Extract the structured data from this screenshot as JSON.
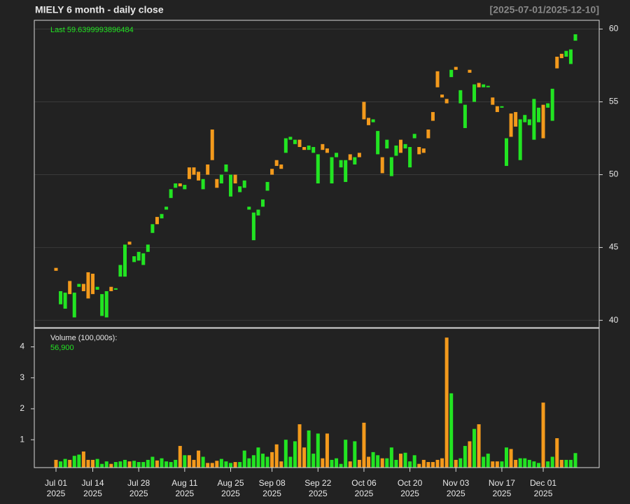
{
  "chart_data": {
    "type": "candlestick",
    "title": "MIELY  6 month - daily close",
    "range_label": "[2025-07-01/2025-12-10]",
    "last_label": "Last",
    "volume_title": "Volume (100,000s):",
    "x": [
      "2025-07-01",
      "2025-07-02",
      "2025-07-03",
      "2025-07-07",
      "2025-07-08",
      "2025-07-09",
      "2025-07-10",
      "2025-07-11",
      "2025-07-14",
      "2025-07-15",
      "2025-07-16",
      "2025-07-17",
      "2025-07-18",
      "2025-07-21",
      "2025-07-22",
      "2025-07-23",
      "2025-07-24",
      "2025-07-25",
      "2025-07-28",
      "2025-07-29",
      "2025-07-30",
      "2025-07-31",
      "2025-08-01",
      "2025-08-04",
      "2025-08-05",
      "2025-08-06",
      "2025-08-07",
      "2025-08-08",
      "2025-08-11",
      "2025-08-12",
      "2025-08-13",
      "2025-08-14",
      "2025-08-15",
      "2025-08-18",
      "2025-08-19",
      "2025-08-20",
      "2025-08-21",
      "2025-08-22",
      "2025-08-25",
      "2025-08-26",
      "2025-08-27",
      "2025-08-28",
      "2025-08-29",
      "2025-09-02",
      "2025-09-03",
      "2025-09-04",
      "2025-09-05",
      "2025-09-08",
      "2025-09-09",
      "2025-09-10",
      "2025-09-11",
      "2025-09-12",
      "2025-09-15",
      "2025-09-16",
      "2025-09-17",
      "2025-09-18",
      "2025-09-19",
      "2025-09-22",
      "2025-09-23",
      "2025-09-24",
      "2025-09-25",
      "2025-09-26",
      "2025-09-29",
      "2025-09-30",
      "2025-10-01",
      "2025-10-02",
      "2025-10-03",
      "2025-10-06",
      "2025-10-07",
      "2025-10-08",
      "2025-10-09",
      "2025-10-10",
      "2025-10-13",
      "2025-10-14",
      "2025-10-15",
      "2025-10-16",
      "2025-10-17",
      "2025-10-20",
      "2025-10-21",
      "2025-10-22",
      "2025-10-23",
      "2025-10-24",
      "2025-10-27",
      "2025-10-28",
      "2025-10-29",
      "2025-10-30",
      "2025-10-31",
      "2025-11-03",
      "2025-11-04",
      "2025-11-05",
      "2025-11-06",
      "2025-11-07",
      "2025-11-10",
      "2025-11-11",
      "2025-11-12",
      "2025-11-13",
      "2025-11-14",
      "2025-11-17",
      "2025-11-18",
      "2025-11-19",
      "2025-11-20",
      "2025-11-21",
      "2025-11-24",
      "2025-11-25",
      "2025-11-26",
      "2025-11-28",
      "2025-12-01",
      "2025-12-02",
      "2025-12-03",
      "2025-12-04",
      "2025-12-05",
      "2025-12-08",
      "2025-12-09",
      "2025-12-10"
    ],
    "open": [
      43.6,
      41.1,
      40.8,
      42.7,
      40.2,
      42.3,
      42.5,
      43.3,
      43.2,
      42.1,
      40.3,
      40.2,
      42.3,
      42.1,
      43.0,
      43.0,
      45.4,
      44.0,
      44.1,
      43.8,
      44.7,
      46.0,
      47.1,
      47.0,
      47.6,
      48.4,
      49.1,
      49.4,
      49.0,
      50.5,
      50.5,
      50.2,
      49.0,
      50.7,
      53.1,
      49.7,
      49.4,
      50.2,
      48.5,
      50.0,
      48.8,
      49.1,
      47.6,
      45.5,
      47.2,
      47.8,
      48.9,
      50.4,
      51.0,
      50.7,
      51.5,
      52.4,
      52.1,
      52.4,
      51.9,
      51.7,
      51.5,
      49.4,
      52.1,
      51.8,
      49.4,
      51.2,
      50.5,
      49.5,
      51.4,
      50.7,
      51.5,
      55.0,
      53.9,
      53.6,
      51.4,
      51.2,
      51.8,
      49.9,
      51.3,
      52.4,
      51.8,
      50.5,
      52.5,
      51.9,
      51.8,
      53.1,
      54.3,
      57.1,
      55.5,
      55.2,
      56.7,
      57.4,
      54.9,
      53.2,
      57.2,
      55.0,
      56.3,
      56.0,
      56.0,
      55.3,
      54.7,
      54.6,
      50.6,
      54.2,
      54.3,
      51.0,
      53.6,
      53.4,
      52.4,
      53.6,
      54.8,
      54.6,
      53.7,
      58.1,
      58.3,
      58.1,
      57.6,
      59.2
    ],
    "close": [
      43.4,
      42.0,
      41.9,
      41.8,
      41.9,
      42.5,
      42.0,
      41.5,
      41.8,
      42.3,
      41.8,
      42.0,
      42.0,
      42.2,
      43.8,
      45.2,
      45.2,
      44.4,
      44.7,
      44.6,
      45.2,
      46.6,
      46.6,
      47.3,
      47.8,
      49.0,
      49.4,
      49.2,
      49.3,
      49.7,
      50.0,
      49.6,
      49.7,
      50.0,
      51.0,
      49.1,
      50.0,
      50.7,
      50.0,
      49.4,
      49.2,
      49.6,
      47.8,
      47.4,
      47.6,
      48.3,
      49.5,
      50.0,
      50.6,
      50.4,
      52.5,
      52.6,
      52.4,
      51.9,
      51.7,
      52.0,
      51.9,
      51.4,
      51.7,
      51.5,
      51.2,
      51.5,
      51.0,
      51.0,
      51.0,
      51.2,
      51.2,
      53.8,
      53.4,
      53.8,
      53.0,
      50.1,
      52.4,
      51.2,
      52.0,
      51.5,
      52.1,
      51.9,
      52.8,
      51.4,
      51.5,
      52.5,
      53.7,
      56.0,
      55.3,
      54.9,
      57.2,
      57.2,
      55.8,
      54.8,
      57.0,
      56.2,
      56.0,
      56.2,
      56.1,
      54.8,
      54.3,
      54.7,
      52.5,
      52.6,
      53.3,
      53.8,
      54.1,
      53.8,
      55.2,
      54.6,
      52.5,
      54.9,
      55.9,
      57.3,
      58.0,
      58.5,
      58.6,
      59.6399993896484
    ],
    "volume": [
      0.35,
      0.3,
      0.38,
      0.35,
      0.48,
      0.52,
      0.62,
      0.35,
      0.35,
      0.38,
      0.22,
      0.3,
      0.22,
      0.28,
      0.3,
      0.35,
      0.3,
      0.32,
      0.28,
      0.28,
      0.35,
      0.45,
      0.33,
      0.4,
      0.3,
      0.28,
      0.35,
      0.8,
      0.5,
      0.5,
      0.35,
      0.65,
      0.45,
      0.25,
      0.25,
      0.32,
      0.38,
      0.3,
      0.25,
      0.28,
      0.28,
      0.65,
      0.4,
      0.5,
      0.75,
      0.55,
      0.45,
      0.6,
      0.85,
      0.3,
      1.0,
      0.45,
      0.95,
      1.5,
      0.75,
      1.3,
      0.55,
      1.2,
      0.4,
      1.2,
      0.35,
      0.4,
      0.22,
      1.0,
      0.3,
      0.95,
      0.35,
      1.55,
      0.45,
      0.6,
      0.5,
      0.4,
      0.4,
      0.75,
      0.35,
      0.55,
      0.58,
      0.3,
      0.5,
      0.22,
      0.35,
      0.28,
      0.28,
      0.35,
      0.4,
      4.3,
      2.5,
      0.35,
      0.4,
      0.8,
      0.95,
      1.35,
      1.5,
      0.45,
      0.55,
      0.3,
      0.3,
      0.3,
      0.75,
      0.7,
      0.35,
      0.4,
      0.4,
      0.35,
      0.3,
      0.25,
      2.2,
      0.3,
      0.45,
      1.05,
      0.35,
      0.35,
      0.35,
      0.569
    ],
    "last_volume": {
      "value": 0.569,
      "label": "56,900"
    },
    "up_color": "#22e422",
    "down_color": "#f39a1c",
    "ylim": [
      39.5,
      60.6
    ],
    "yticks": [
      40,
      45,
      50,
      55,
      60
    ],
    "y2lim": [
      0.1,
      4.6
    ],
    "y2ticks": [
      1,
      2,
      3,
      4
    ],
    "xticks": [
      {
        "value": "2025-07-01",
        "label": "Jul 01",
        "year": "2025"
      },
      {
        "value": "2025-07-14",
        "label": "Jul 14",
        "year": "2025"
      },
      {
        "value": "2025-07-28",
        "label": "Jul 28",
        "year": "2025"
      },
      {
        "value": "2025-08-11",
        "label": "Aug 11",
        "year": "2025"
      },
      {
        "value": "2025-08-25",
        "label": "Aug 25",
        "year": "2025"
      },
      {
        "value": "2025-09-08",
        "label": "Sep 08",
        "year": "2025"
      },
      {
        "value": "2025-09-22",
        "label": "Sep 22",
        "year": "2025"
      },
      {
        "value": "2025-10-06",
        "label": "Oct 06",
        "year": "2025"
      },
      {
        "value": "2025-10-20",
        "label": "Oct 20",
        "year": "2025"
      },
      {
        "value": "2025-11-03",
        "label": "Nov 03",
        "year": "2025"
      },
      {
        "value": "2025-11-17",
        "label": "Nov 17",
        "year": "2025"
      },
      {
        "value": "2025-12-01",
        "label": "Dec 01",
        "year": "2025"
      }
    ],
    "grid": true
  }
}
